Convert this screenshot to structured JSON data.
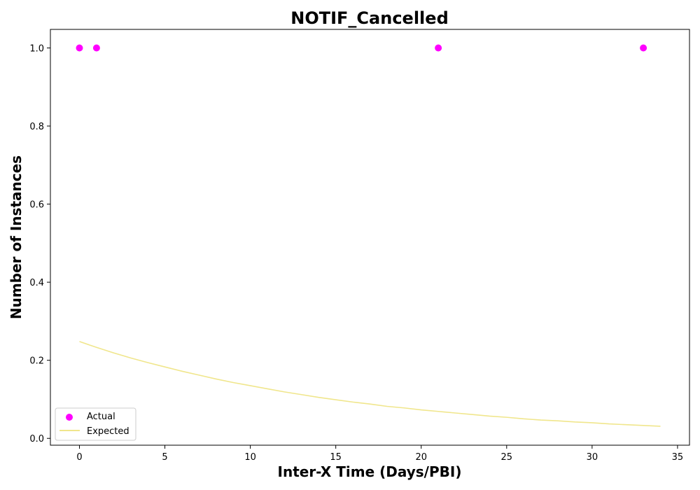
{
  "chart_data": {
    "type": "scatter",
    "title": "NOTIF_Cancelled",
    "xlabel": "Inter-X Time (Days/PBI)",
    "ylabel": "Number of Instances",
    "xlim": [
      -1.7,
      35.7
    ],
    "ylim": [
      -0.0175,
      1.0475
    ],
    "xticks": [
      0,
      5,
      10,
      15,
      20,
      25,
      30,
      35
    ],
    "yticks": [
      0.0,
      0.2,
      0.4,
      0.6,
      0.8,
      1.0
    ],
    "xtick_labels": [
      "0",
      "5",
      "10",
      "15",
      "20",
      "25",
      "30",
      "35"
    ],
    "ytick_labels": [
      "0.0",
      "0.2",
      "0.4",
      "0.6",
      "0.8",
      "1.0"
    ],
    "grid": false,
    "legend_position": "lower-left",
    "series": [
      {
        "name": "Actual",
        "kind": "scatter",
        "color": "#ff00ff",
        "x": [
          0,
          1,
          21,
          33
        ],
        "y": [
          1.0,
          1.0,
          1.0,
          1.0
        ]
      },
      {
        "name": "Expected",
        "kind": "line",
        "color": "#f0e68c",
        "x": [
          0,
          1,
          2,
          3,
          4,
          5,
          6,
          7,
          8,
          9,
          10,
          11,
          12,
          13,
          14,
          15,
          16,
          17,
          18,
          19,
          20,
          21,
          22,
          23,
          24,
          25,
          26,
          27,
          28,
          29,
          30,
          31,
          32,
          33,
          34
        ],
        "y": [
          0.248,
          0.233,
          0.219,
          0.206,
          0.194,
          0.183,
          0.172,
          0.162,
          0.152,
          0.143,
          0.135,
          0.127,
          0.119,
          0.112,
          0.105,
          0.099,
          0.093,
          0.088,
          0.082,
          0.078,
          0.073,
          0.069,
          0.065,
          0.061,
          0.057,
          0.054,
          0.05,
          0.047,
          0.045,
          0.042,
          0.04,
          0.037,
          0.035,
          0.033,
          0.031
        ]
      }
    ]
  }
}
